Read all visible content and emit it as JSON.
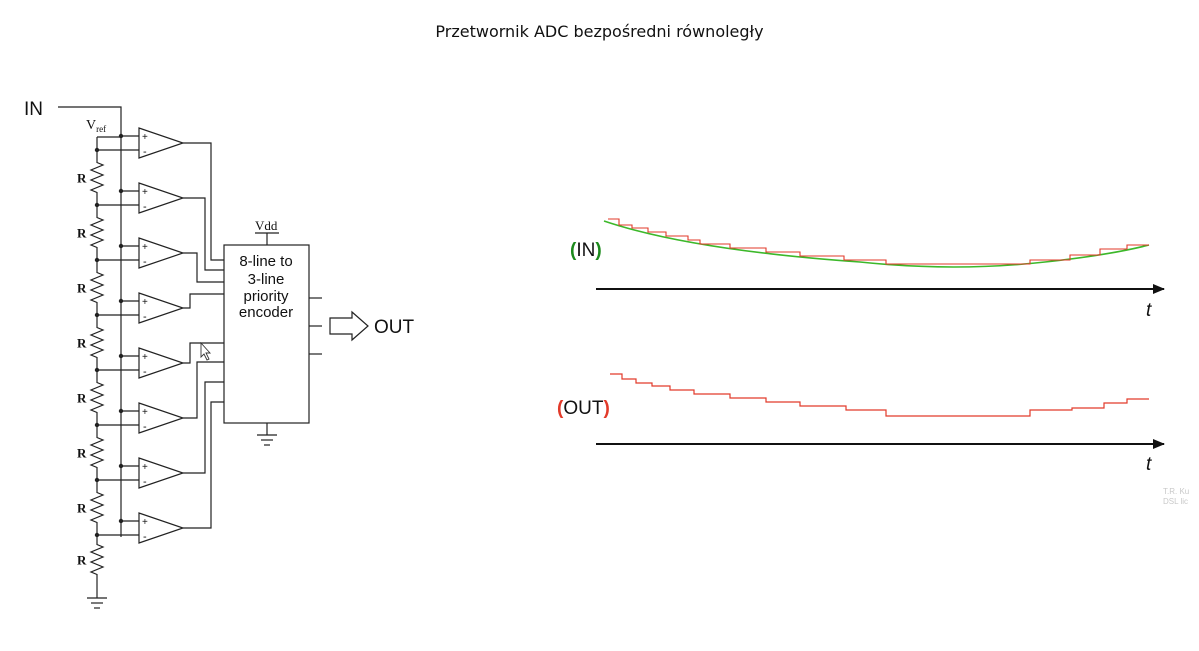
{
  "title": "Przetwornik ADC bezpośredni równoległy",
  "circuit": {
    "input_label": "IN",
    "vref_label": "V",
    "vref_sub": "ref",
    "resistor_label": "R",
    "vdd_label": "Vdd",
    "encoder_lines": [
      "8-line to",
      "3-line",
      "priority",
      "encoder"
    ],
    "output_label": "OUT",
    "plus_sign": "+",
    "minus_sign": "-"
  },
  "waveforms": {
    "in_label_paren_open": "(",
    "in_label_text": "IN",
    "in_label_paren_close": ")",
    "out_label_paren_open": "(",
    "out_label_text": "OUT",
    "out_label_paren_close": ")",
    "time_axis_label": "t",
    "colors": {
      "analog": "#3cb82a",
      "digital": "#e23a2a",
      "paren_green": "#1c8a1c",
      "paren_red": "#e23a2a"
    }
  },
  "watermark": [
    "T.R. Ku",
    "DSL lic"
  ]
}
